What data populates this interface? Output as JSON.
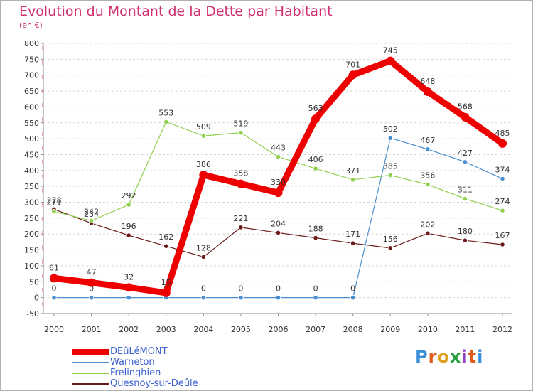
{
  "header": {
    "title": "Evolution du Montant de la Dette par Habitant",
    "subtitle": "(en €)"
  },
  "logo": {
    "text": "Proxiti",
    "letter_colors": [
      "#3a8fd8",
      "#e05a1a",
      "#e0a020",
      "#2aa040",
      "#8a40c0",
      "#e05a1a",
      "#3a8fd8"
    ]
  },
  "chart_data": {
    "type": "line",
    "title": "Evolution du Montant de la Dette par Habitant",
    "subtitle": "(en €)",
    "xlabel": "",
    "ylabel": "",
    "categories": [
      "2000",
      "2001",
      "2002",
      "2003",
      "2004",
      "2005",
      "2006",
      "2007",
      "2008",
      "2009",
      "2010",
      "2011",
      "2012"
    ],
    "ylim": [
      -50,
      800
    ],
    "yticks": [
      -50,
      0,
      50,
      100,
      150,
      200,
      250,
      300,
      350,
      400,
      450,
      500,
      550,
      600,
      650,
      700,
      750,
      800
    ],
    "grid": "horizontal",
    "legend_position": "bottom-left",
    "series": [
      {
        "name": "Quesnoy-sur-Deûle",
        "color": "#6b1a1a",
        "emphasis": false,
        "values": [
          278,
          234,
          196,
          162,
          128,
          221,
          204,
          188,
          171,
          156,
          202,
          180,
          167
        ]
      },
      {
        "name": "Warneton",
        "color": "#4a8fd0",
        "emphasis": false,
        "values": [
          0,
          0,
          0,
          0,
          0,
          0,
          0,
          0,
          0,
          502,
          467,
          427,
          374
        ]
      },
      {
        "name": "Frelinghien",
        "color": "#90d050",
        "emphasis": false,
        "values": [
          271,
          242,
          292,
          553,
          509,
          519,
          443,
          406,
          371,
          385,
          356,
          311,
          274
        ]
      },
      {
        "name": "DEûLéMONT",
        "color": "#ee0000",
        "emphasis": true,
        "values": [
          61,
          47,
          32,
          15,
          386,
          358,
          330,
          563,
          701,
          745,
          648,
          568,
          485
        ]
      }
    ],
    "legend_order": [
      "DEûLéMONT",
      "Warneton",
      "Frelinghien",
      "Quesnoy-sur-Deûle"
    ]
  }
}
